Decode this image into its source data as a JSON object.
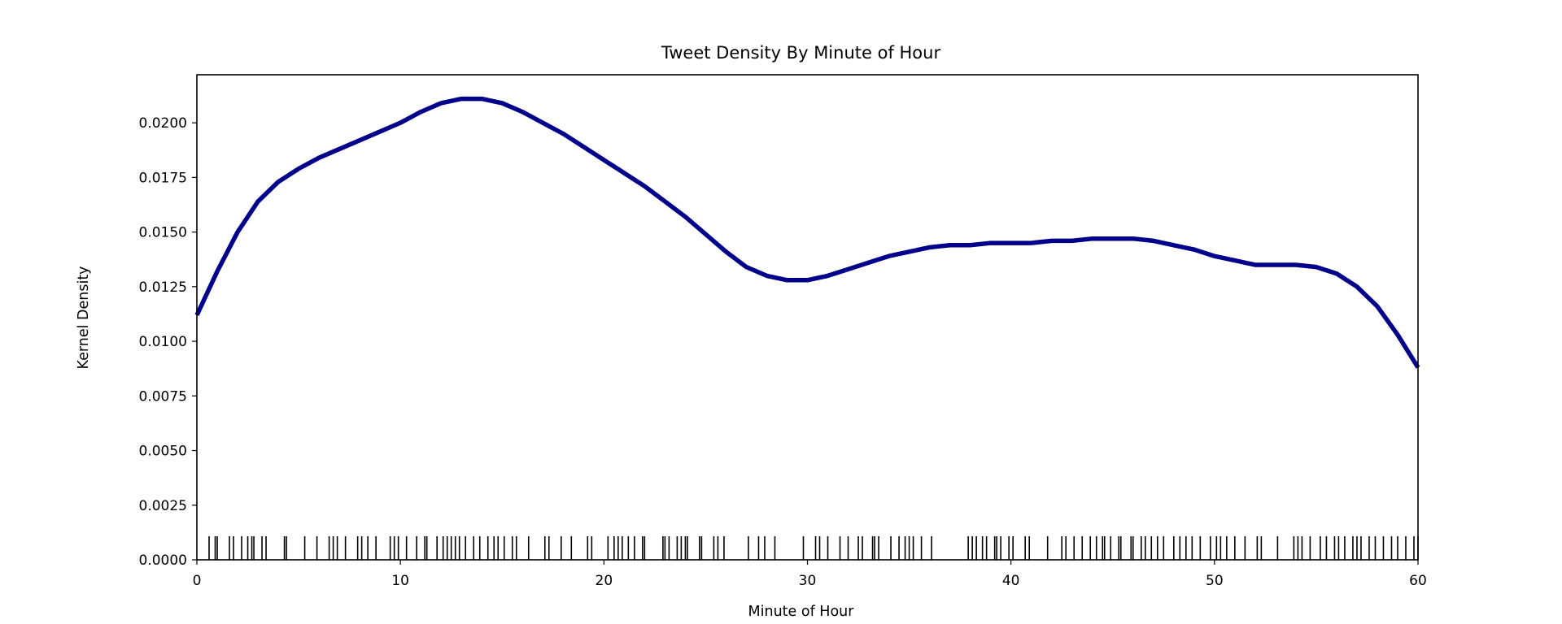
{
  "chart_data": {
    "type": "line",
    "title": "Tweet Density By Minute of Hour",
    "xlabel": "Minute of Hour",
    "ylabel": "Kernel Density",
    "xlim": [
      0,
      60
    ],
    "ylim": [
      0,
      0.0222
    ],
    "x_ticks": [
      0,
      10,
      20,
      30,
      40,
      50,
      60
    ],
    "x_tick_labels": [
      "0",
      "10",
      "20",
      "30",
      "40",
      "50",
      "60"
    ],
    "y_ticks": [
      0,
      0.0025,
      0.005,
      0.0075,
      0.01,
      0.0125,
      0.015,
      0.0175,
      0.02
    ],
    "y_tick_labels": [
      "0.0000",
      "0.0025",
      "0.0050",
      "0.0075",
      "0.0100",
      "0.0125",
      "0.0150",
      "0.0175",
      "0.0200"
    ],
    "grid": false,
    "series": [
      {
        "color": "#00008b",
        "x": [
          0,
          1,
          2,
          3,
          4,
          5,
          6,
          7,
          8,
          9,
          10,
          11,
          12,
          13,
          14,
          15,
          16,
          17,
          18,
          19,
          20,
          21,
          22,
          23,
          24,
          25,
          26,
          27,
          28,
          29,
          30,
          31,
          32,
          33,
          34,
          35,
          36,
          37,
          38,
          39,
          40,
          41,
          42,
          43,
          44,
          45,
          46,
          47,
          48,
          49,
          50,
          51,
          52,
          53,
          54,
          55,
          56,
          57,
          58,
          59,
          60
        ],
        "y": [
          0.0112,
          0.0132,
          0.015,
          0.0164,
          0.0173,
          0.0179,
          0.0184,
          0.0188,
          0.0192,
          0.0196,
          0.02,
          0.0205,
          0.0209,
          0.0211,
          0.0211,
          0.0209,
          0.0205,
          0.02,
          0.0195,
          0.0189,
          0.0183,
          0.0177,
          0.0171,
          0.0164,
          0.0157,
          0.0149,
          0.0141,
          0.0134,
          0.013,
          0.0128,
          0.0128,
          0.013,
          0.0133,
          0.0136,
          0.0139,
          0.0141,
          0.0143,
          0.0144,
          0.0144,
          0.0145,
          0.0145,
          0.0145,
          0.0146,
          0.0146,
          0.0147,
          0.0147,
          0.0147,
          0.0146,
          0.0144,
          0.0142,
          0.0139,
          0.0137,
          0.0135,
          0.0135,
          0.0135,
          0.0134,
          0.0131,
          0.0125,
          0.0116,
          0.0103,
          0.0088
        ]
      }
    ],
    "rug": {
      "color": "#000000",
      "values": [
        0.6,
        0.9,
        1.0,
        1.6,
        1.8,
        2.2,
        2.5,
        2.7,
        2.8,
        3.2,
        3.4,
        4.3,
        4.4,
        5.3,
        5.9,
        6.5,
        6.7,
        6.9,
        7.3,
        7.9,
        8.1,
        8.4,
        8.8,
        9.5,
        9.7,
        9.9,
        10.3,
        10.8,
        11.2,
        11.3,
        11.8,
        12.1,
        12.3,
        12.5,
        12.7,
        12.9,
        13.2,
        13.6,
        13.9,
        14.3,
        14.6,
        14.8,
        15.1,
        15.5,
        15.7,
        16.3,
        17.1,
        17.3,
        17.9,
        18.4,
        19.2,
        19.4,
        20.2,
        20.5,
        20.7,
        20.9,
        21.2,
        21.5,
        21.9,
        22.0,
        22.9,
        23.0,
        23.2,
        23.6,
        23.8,
        24.0,
        24.1,
        24.7,
        24.8,
        25.4,
        25.6,
        25.9,
        27.1,
        27.6,
        27.9,
        28.4,
        29.8,
        30.4,
        30.6,
        31.0,
        31.6,
        32.0,
        32.5,
        32.7,
        33.2,
        33.3,
        33.5,
        34.1,
        34.5,
        34.8,
        35.0,
        35.2,
        35.6,
        36.1,
        37.9,
        38.1,
        38.3,
        38.6,
        38.8,
        39.2,
        39.3,
        39.5,
        39.9,
        40.1,
        40.7,
        40.9,
        41.8,
        42.5,
        42.7,
        43.1,
        43.5,
        43.9,
        44.2,
        44.5,
        44.6,
        44.9,
        45.3,
        45.4,
        45.9,
        46.0,
        46.4,
        46.6,
        46.9,
        47.2,
        47.5,
        48.0,
        48.3,
        48.6,
        48.9,
        49.3,
        49.8,
        50.1,
        50.3,
        50.6,
        51.0,
        51.5,
        52.1,
        52.3,
        53.1,
        53.9,
        54.1,
        54.3,
        54.7,
        55.2,
        55.5,
        55.9,
        56.1,
        56.4,
        56.8,
        57.0,
        57.2,
        57.6,
        57.9,
        58.3,
        58.7,
        59.0,
        59.4,
        59.8,
        60.0
      ]
    }
  }
}
